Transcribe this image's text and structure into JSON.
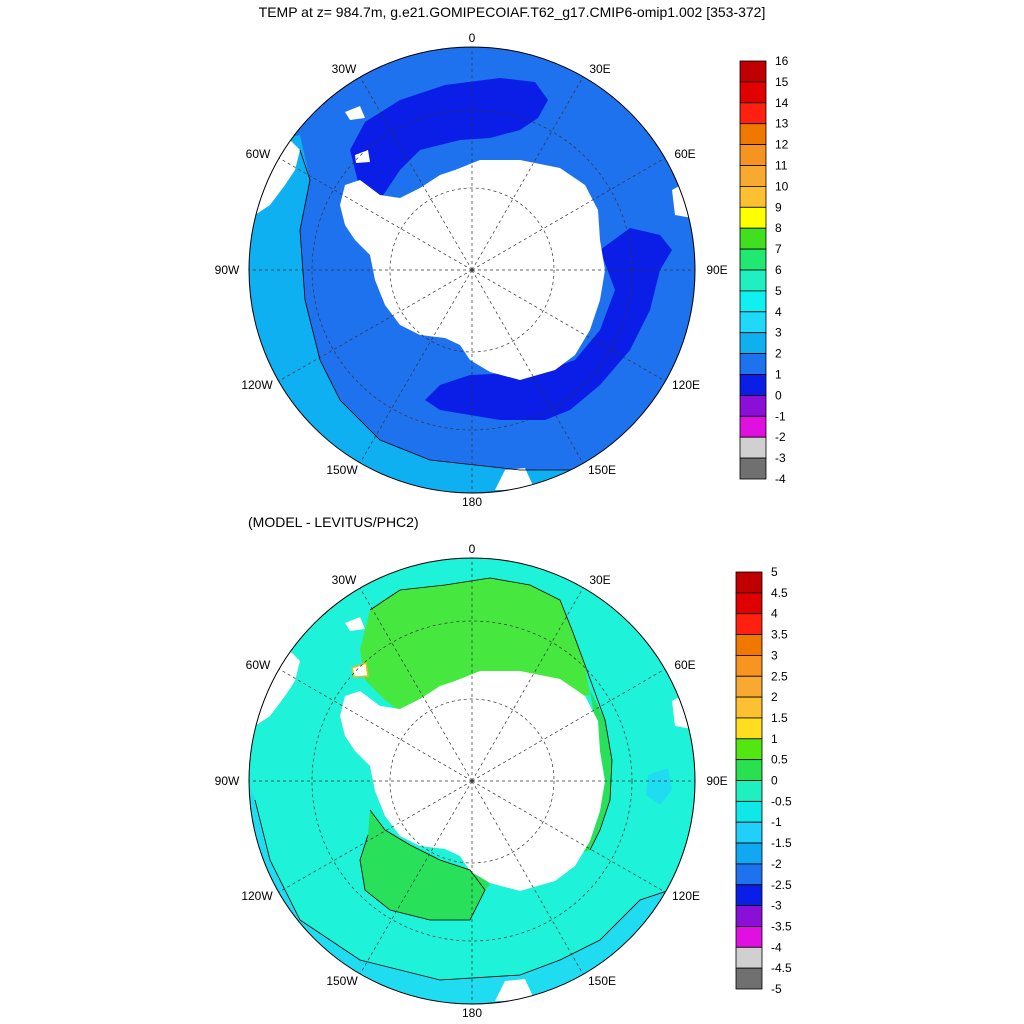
{
  "title": "TEMP at z= 984.7m, g.e21.GOMIPECOIAF.T62_g17.CMIP6-omip1.002 [353-372]",
  "subtitle": "(MODEL - LEVITUS/PHC2)",
  "lon_labels": {
    "l0": "0",
    "l30e": "30E",
    "l60e": "60E",
    "l90e": "90E",
    "l120e": "120E",
    "l150e": "150E",
    "l180": "180",
    "l150w": "150W",
    "l120w": "120W",
    "l90w": "90W",
    "l60w": "60W",
    "l30w": "30W"
  },
  "colors": {
    "land": "#ffffff",
    "ocean_top": "#1e72ee",
    "ocean_top_light": "#0fb0f2",
    "ocean_top_cold": "#0a1ee8",
    "ocean_bottom": "#1ef2d8",
    "ocean_bottom_cool": "#20dcf0",
    "ocean_bottom_warm": "#46e840",
    "ocean_bottom_green": "#28e05a"
  },
  "colorbar_top": {
    "labels": [
      "16",
      "15",
      "14",
      "13",
      "12",
      "11",
      "10",
      "9",
      "8",
      "7",
      "6",
      "5",
      "4",
      "3",
      "2",
      "1",
      "0",
      "-1",
      "-2",
      "-3",
      "-4"
    ],
    "colors": [
      "#c00000",
      "#e00000",
      "#ff2010",
      "#f07800",
      "#f59420",
      "#f8aa30",
      "#fcc030",
      "#ffff00",
      "#40e020",
      "#20e870",
      "#20f0c0",
      "#10f0f0",
      "#20d8f8",
      "#10b0f0",
      "#1e72ee",
      "#0a1ee8",
      "#8a10d8",
      "#e010e0",
      "#d0d0d0",
      "#707070"
    ]
  },
  "colorbar_bottom": {
    "labels": [
      "5",
      "4.5",
      "4",
      "3.5",
      "3",
      "2.5",
      "2",
      "1.5",
      "1",
      "0.5",
      "0",
      "-0.5",
      "-1",
      "-1.5",
      "-2",
      "-2.5",
      "-3",
      "-3.5",
      "-4",
      "-4.5",
      "-5"
    ],
    "colors": [
      "#c00000",
      "#e00000",
      "#ff2010",
      "#f07800",
      "#f89420",
      "#f8aa30",
      "#fcc030",
      "#ffdd20",
      "#50e810",
      "#28e050",
      "#20f0c0",
      "#10e8e8",
      "#20d0f8",
      "#10a8f0",
      "#1e72ee",
      "#0a1ee8",
      "#8a10d8",
      "#e010e0",
      "#d0d0d0",
      "#707070"
    ]
  }
}
